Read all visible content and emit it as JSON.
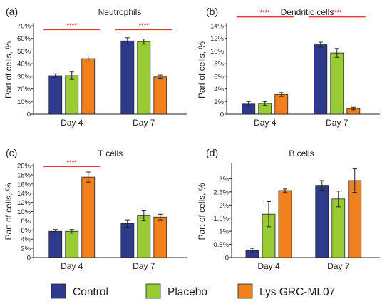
{
  "chart_data": [
    {
      "type": "bar",
      "panel": "(a)",
      "title": "Neutrophils",
      "ylabel": "Part of cells, %",
      "ylim": [
        0,
        70
      ],
      "yticks": [
        0,
        10,
        20,
        30,
        40,
        50,
        60,
        70
      ],
      "ytick_labels": [
        "0",
        "10%",
        "20%",
        "30%",
        "40%",
        "50%",
        "60%",
        "70%"
      ],
      "categories": [
        "Day 4",
        "Day 7"
      ],
      "series": [
        {
          "name": "Control",
          "values": [
            30.5,
            58
          ],
          "errors": [
            1.5,
            2.5
          ]
        },
        {
          "name": "Placebo",
          "values": [
            30.5,
            57.5
          ],
          "errors": [
            3,
            2
          ]
        },
        {
          "name": "Lys GRC-ML07",
          "values": [
            44,
            29.5
          ],
          "errors": [
            2,
            1.5
          ]
        }
      ],
      "significance": [
        {
          "category": "Day 4",
          "label": "****",
          "y": 67
        },
        {
          "category": "Day 7",
          "label": "****",
          "y": 67
        }
      ]
    },
    {
      "type": "bar",
      "panel": "(b)",
      "title": "Dendritic cells",
      "ylabel": "Part of cells, %",
      "ylim": [
        0,
        14
      ],
      "yticks": [
        0,
        2,
        4,
        6,
        8,
        10,
        12,
        14
      ],
      "ytick_labels": [
        "0",
        "2%",
        "4%",
        "6%",
        "8%",
        "10%",
        "12%",
        "14%"
      ],
      "categories": [
        "Day 4",
        "Day 7"
      ],
      "series": [
        {
          "name": "Control",
          "values": [
            1.6,
            11
          ],
          "errors": [
            0.4,
            0.4
          ]
        },
        {
          "name": "Placebo",
          "values": [
            1.7,
            9.7
          ],
          "errors": [
            0.3,
            0.7
          ]
        },
        {
          "name": "Lys GRC-ML07",
          "values": [
            3.1,
            0.9
          ],
          "errors": [
            0.3,
            0.2
          ]
        }
      ],
      "significance": [
        {
          "category": "Day 4",
          "label": "****",
          "y": 15.4
        },
        {
          "category": "Day 7",
          "label": "****",
          "y": 15.4
        }
      ]
    },
    {
      "type": "bar",
      "panel": "(c)",
      "title": "T cells",
      "ylabel": "Part of cells, %",
      "ylim": [
        0,
        20
      ],
      "yticks": [
        0,
        2,
        4,
        6,
        8,
        10,
        12,
        14,
        16,
        18,
        20
      ],
      "ytick_labels": [
        "0",
        "2%",
        "4%",
        "6%",
        "8%",
        "10%",
        "12%",
        "14%",
        "16%",
        "18%",
        "20%"
      ],
      "categories": [
        "Day 4",
        "Day 7"
      ],
      "series": [
        {
          "name": "Control",
          "values": [
            5.7,
            7.4
          ],
          "errors": [
            0.4,
            0.8
          ]
        },
        {
          "name": "Placebo",
          "values": [
            5.7,
            9.2
          ],
          "errors": [
            0.4,
            1.1
          ]
        },
        {
          "name": "Lys GRC-ML07",
          "values": [
            17.5,
            8.8
          ],
          "errors": [
            1.1,
            0.6
          ]
        }
      ],
      "significance": [
        {
          "category": "Day 4",
          "label": "****",
          "y": 19.8
        }
      ]
    },
    {
      "type": "bar",
      "panel": "(d)",
      "title": "B cells",
      "ylabel": "Part of cells, %",
      "ylim": [
        0,
        3.5
      ],
      "yticks": [
        0,
        0.5,
        1,
        1.5,
        2,
        2.5,
        3
      ],
      "ytick_labels": [
        "0",
        "0.5%",
        "1%",
        "1.5%",
        "2%",
        "2.5%",
        "3%"
      ],
      "categories": [
        "Day 4",
        "Day 7"
      ],
      "series": [
        {
          "name": "Control",
          "values": [
            0.27,
            2.75
          ],
          "errors": [
            0.08,
            0.18
          ]
        },
        {
          "name": "Placebo",
          "values": [
            1.65,
            2.23
          ],
          "errors": [
            0.48,
            0.3
          ]
        },
        {
          "name": "Lys GRC-ML07",
          "values": [
            2.55,
            2.93
          ],
          "errors": [
            0.06,
            0.45
          ]
        }
      ],
      "significance": []
    }
  ],
  "legend": {
    "placement": "bottom",
    "items": [
      {
        "label": "Control",
        "color": "#2e3a8c"
      },
      {
        "label": "Placebo",
        "color": "#99cc33"
      },
      {
        "label": "Lys GRC-ML07",
        "color": "#f07f1c"
      }
    ]
  },
  "colors": {
    "bar_stroke": "#222222",
    "significance": "#e53935",
    "axis": "#222222"
  }
}
